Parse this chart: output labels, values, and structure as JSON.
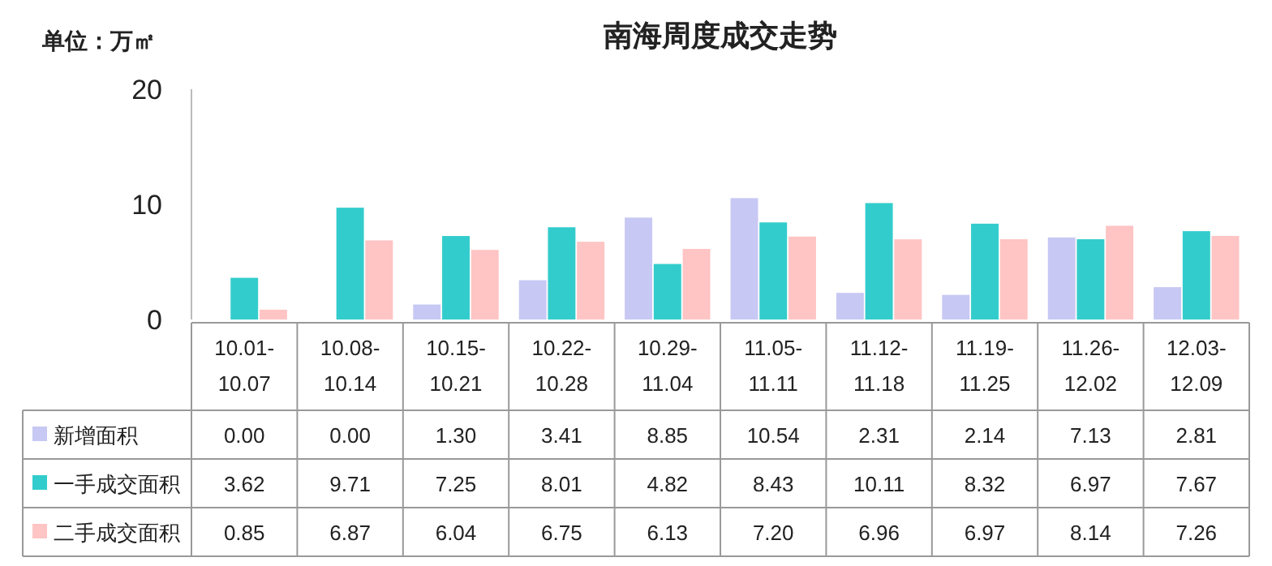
{
  "chart_data": {
    "type": "bar",
    "title": "南海周度成交走势",
    "annotations": [
      "单位：万㎡"
    ],
    "categories": [
      "10.01-10.07",
      "10.08-10.14",
      "10.15-10.21",
      "10.22-10.28",
      "10.29-11.04",
      "11.05-11.11",
      "11.12-11.18",
      "11.19-11.25",
      "11.26-12.02",
      "12.03-12.09"
    ],
    "series": [
      {
        "name": "新增面积",
        "color": "#c8c8f4",
        "values": [
          0,
          0,
          1.3,
          3.41,
          8.85,
          10.54,
          2.31,
          2.14,
          7.13,
          2.81
        ],
        "value_labels": [
          "0.00",
          "0.00",
          "1.30",
          "3.41",
          "8.85",
          "10.54",
          "2.31",
          "2.14",
          "7.13",
          "2.81"
        ]
      },
      {
        "name": "一手成交面积",
        "color": "#33cccc",
        "values": [
          3.62,
          9.71,
          7.25,
          8.01,
          4.82,
          8.43,
          10.11,
          8.32,
          6.97,
          7.67
        ],
        "value_labels": [
          "3.62",
          "9.71",
          "7.25",
          "8.01",
          "4.82",
          "8.43",
          "10.11",
          "8.32",
          "6.97",
          "7.67"
        ]
      },
      {
        "name": "二手成交面积",
        "color": "#ffc4c4",
        "values": [
          0.85,
          6.87,
          6.04,
          6.75,
          6.13,
          7.2,
          6.96,
          6.97,
          8.14,
          7.26
        ],
        "value_labels": [
          "0.85",
          "6.87",
          "6.04",
          "6.75",
          "6.13",
          "7.20",
          "6.96",
          "6.97",
          "8.14",
          "7.26"
        ]
      }
    ],
    "legend": "bottom left",
    "ylim": [
      0,
      20
    ],
    "yticks": [
      0,
      10,
      20
    ]
  }
}
